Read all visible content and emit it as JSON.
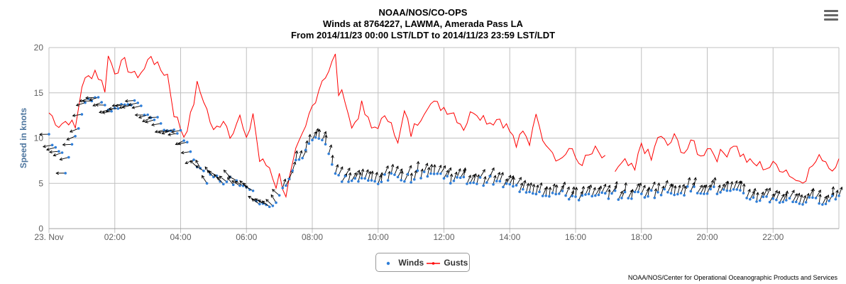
{
  "title": {
    "line1": "NOAA/NOS/CO-OPS",
    "line2": "Winds at 8764227, LAWMA, Amerada Pass LA",
    "line3": "From 2014/11/23 00:00 LST/LDT to 2014/11/23 23:59 LST/LDT"
  },
  "credits": "NOAA/NOS/Center for Operational Oceanographic Products and Services",
  "menu_icon": "hamburger-menu-icon",
  "colors": {
    "winds": "#2f7ed8",
    "gusts": "#ff0000",
    "arrows": "#000000",
    "grid": "#c0c0c0"
  },
  "legend": {
    "winds": "Winds",
    "gusts": "Gusts"
  },
  "chart_data": {
    "type": "line",
    "ylabel": "Speed in knots",
    "ylim": [
      0,
      20
    ],
    "yticks": [
      "0",
      "5",
      "10",
      "15",
      "20"
    ],
    "xlim": [
      0,
      24
    ],
    "xticks": [
      "23. Nov",
      "02:00",
      "04:00",
      "06:00",
      "08:00",
      "10:00",
      "12:00",
      "14:00",
      "16:00",
      "18:00",
      "20:00",
      "22:00"
    ],
    "grid": true,
    "legend_position": "bottom-center",
    "gust_gap_hours": [
      16.9,
      17.1
    ],
    "series": [
      {
        "name": "Gusts",
        "type": "line",
        "knots": [
          [
            0,
            12.8
          ],
          [
            0.3,
            11.5
          ],
          [
            0.6,
            12.0
          ],
          [
            0.8,
            11.0
          ],
          [
            1.0,
            15.9
          ],
          [
            1.4,
            17.5
          ],
          [
            1.7,
            15.5
          ],
          [
            1.8,
            19.0
          ],
          [
            2.0,
            17.5
          ],
          [
            2.3,
            18.3
          ],
          [
            2.6,
            16.8
          ],
          [
            2.9,
            17.6
          ],
          [
            3.1,
            19.3
          ],
          [
            3.3,
            17.8
          ],
          [
            3.6,
            17.0
          ],
          [
            3.8,
            12.8
          ],
          [
            4.1,
            10.3
          ],
          [
            4.3,
            12.3
          ],
          [
            4.5,
            15.8
          ],
          [
            4.7,
            14.3
          ],
          [
            5.0,
            10.6
          ],
          [
            5.3,
            12.2
          ],
          [
            5.5,
            10.5
          ],
          [
            5.8,
            12.3
          ],
          [
            6.0,
            9.5
          ],
          [
            6.2,
            12.8
          ],
          [
            6.4,
            7.5
          ],
          [
            6.7,
            6.8
          ],
          [
            6.9,
            4.8
          ],
          [
            7.0,
            5.8
          ],
          [
            7.2,
            3.8
          ],
          [
            7.5,
            8.3
          ],
          [
            7.8,
            11.0
          ],
          [
            7.9,
            12.5
          ],
          [
            8.1,
            14.5
          ],
          [
            8.3,
            16.5
          ],
          [
            8.5,
            17.5
          ],
          [
            8.7,
            19.0
          ],
          [
            8.8,
            15.0
          ],
          [
            9.0,
            14.5
          ],
          [
            9.2,
            11.0
          ],
          [
            9.5,
            13.5
          ],
          [
            9.8,
            11.0
          ],
          [
            10.1,
            11.8
          ],
          [
            10.4,
            12.3
          ],
          [
            10.6,
            9.2
          ],
          [
            10.8,
            12.8
          ],
          [
            11.0,
            10.5
          ],
          [
            11.3,
            12.5
          ],
          [
            11.5,
            13.8
          ],
          [
            11.8,
            13.6
          ],
          [
            12.0,
            13.4
          ],
          [
            12.3,
            12.8
          ],
          [
            12.6,
            11.2
          ],
          [
            12.9,
            13.2
          ],
          [
            13.1,
            12.6
          ],
          [
            13.4,
            11.8
          ],
          [
            13.7,
            12.2
          ],
          [
            14.0,
            10.8
          ],
          [
            14.2,
            9.2
          ],
          [
            14.4,
            10.5
          ],
          [
            14.6,
            9.5
          ],
          [
            14.8,
            13.2
          ],
          [
            14.9,
            10.8
          ],
          [
            15.2,
            9.2
          ],
          [
            15.5,
            7.5
          ],
          [
            15.8,
            8.8
          ],
          [
            16.1,
            7.3
          ],
          [
            16.3,
            7.6
          ],
          [
            16.6,
            8.6
          ],
          [
            16.9,
            7.5
          ],
          [
            17.2,
            6.3
          ],
          [
            17.5,
            7.2
          ],
          [
            17.8,
            6.3
          ],
          [
            18.0,
            9.5
          ],
          [
            18.3,
            7.5
          ],
          [
            18.5,
            10.2
          ],
          [
            18.8,
            9.2
          ],
          [
            19.0,
            10.0
          ],
          [
            19.3,
            8.5
          ],
          [
            19.6,
            9.5
          ],
          [
            19.8,
            7.8
          ],
          [
            20.0,
            9.2
          ],
          [
            20.3,
            8.0
          ],
          [
            20.6,
            8.5
          ],
          [
            20.8,
            9.5
          ],
          [
            21.0,
            8.3
          ],
          [
            21.3,
            7.2
          ],
          [
            21.6,
            7.0
          ],
          [
            21.8,
            6.8
          ],
          [
            22.1,
            7.0
          ],
          [
            22.4,
            6.5
          ],
          [
            22.7,
            5.3
          ],
          [
            23.0,
            5.8
          ],
          [
            23.2,
            7.0
          ],
          [
            23.5,
            8.0
          ],
          [
            23.8,
            6.5
          ],
          [
            24.0,
            8.2
          ]
        ],
        "noise": 0.8
      },
      {
        "name": "Winds",
        "type": "scatter",
        "knots": [
          [
            0,
            10.2
          ],
          [
            0.2,
            9.2
          ],
          [
            0.4,
            8.4
          ],
          [
            0.5,
            6.0
          ],
          [
            0.8,
            10.3
          ],
          [
            1.2,
            14.5
          ],
          [
            1.5,
            14.3
          ],
          [
            1.8,
            13.0
          ],
          [
            2.2,
            13.5
          ],
          [
            2.5,
            14.0
          ],
          [
            2.8,
            13.2
          ],
          [
            3.1,
            12.5
          ],
          [
            3.4,
            11.5
          ],
          [
            3.7,
            11.0
          ],
          [
            4.0,
            10.7
          ],
          [
            4.3,
            9.0
          ],
          [
            4.5,
            7.0
          ],
          [
            4.8,
            5.5
          ],
          [
            5.2,
            5.4
          ],
          [
            5.6,
            5.2
          ],
          [
            6.0,
            4.8
          ],
          [
            6.3,
            3.2
          ],
          [
            6.6,
            2.8
          ],
          [
            6.8,
            2.2
          ],
          [
            7.0,
            3.5
          ],
          [
            7.2,
            5.0
          ],
          [
            7.5,
            7.2
          ],
          [
            7.8,
            8.5
          ],
          [
            8.1,
            10.5
          ],
          [
            8.4,
            9.5
          ],
          [
            8.7,
            5.8
          ],
          [
            9.0,
            5.5
          ],
          [
            9.4,
            5.3
          ],
          [
            9.8,
            5.2
          ],
          [
            10.2,
            5.5
          ],
          [
            10.6,
            5.8
          ],
          [
            11.0,
            5.6
          ],
          [
            11.4,
            6.2
          ],
          [
            11.8,
            6.0
          ],
          [
            12.2,
            5.5
          ],
          [
            12.6,
            5.3
          ],
          [
            13.0,
            5.2
          ],
          [
            13.4,
            5.3
          ],
          [
            13.8,
            4.8
          ],
          [
            14.2,
            4.5
          ],
          [
            14.6,
            4.3
          ],
          [
            15.0,
            4.0
          ],
          [
            15.4,
            3.8
          ],
          [
            15.8,
            3.6
          ],
          [
            16.2,
            3.5
          ],
          [
            16.6,
            3.4
          ],
          [
            17.0,
            3.8
          ],
          [
            17.4,
            3.6
          ],
          [
            17.8,
            3.7
          ],
          [
            18.2,
            3.9
          ],
          [
            18.6,
            3.9
          ],
          [
            19.0,
            4.1
          ],
          [
            19.4,
            4.2
          ],
          [
            19.8,
            4.3
          ],
          [
            20.2,
            4.2
          ],
          [
            20.6,
            4.0
          ],
          [
            21.0,
            3.8
          ],
          [
            21.3,
            3.4
          ],
          [
            21.6,
            3.3
          ],
          [
            22.0,
            3.3
          ],
          [
            22.4,
            3.1
          ],
          [
            22.8,
            3.0
          ],
          [
            23.2,
            3.0
          ],
          [
            23.6,
            3.2
          ],
          [
            24.0,
            3.5
          ]
        ],
        "noise": 1.0,
        "direction_note": "arrows point toward heading; early hours westward, later northward"
      }
    ]
  }
}
